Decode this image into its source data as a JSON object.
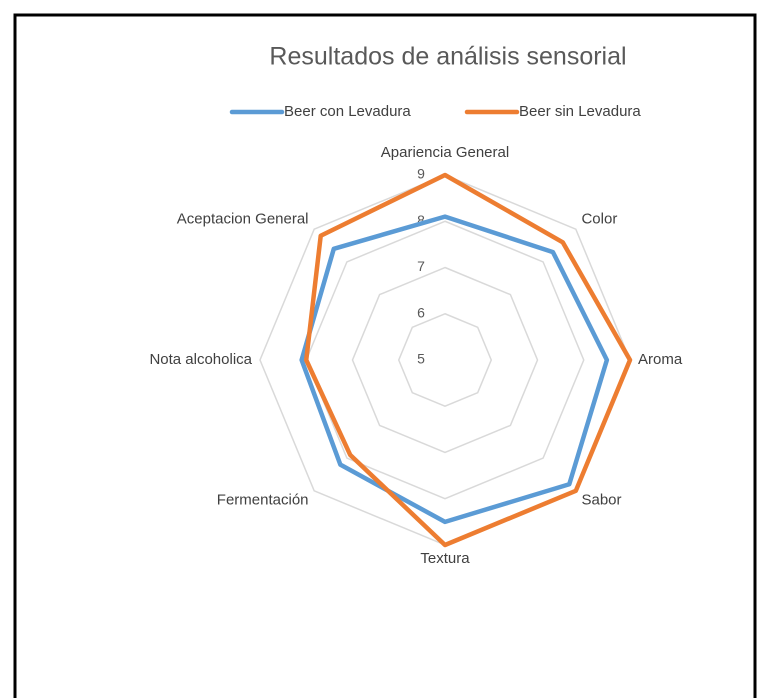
{
  "chart_data": {
    "type": "radar",
    "title": "Resultados de análisis sensorial",
    "categories": [
      "Apariencia General",
      "Color",
      "Aroma",
      "Sabor",
      "Textura",
      "Fermentación",
      "Nota alcoholica",
      "Aceptacion General"
    ],
    "series": [
      {
        "name": "Beer con Levadura",
        "color": "#5b9bd5",
        "values": [
          8.1,
          8.3,
          8.5,
          8.8,
          8.5,
          8.2,
          8.1,
          8.4
        ]
      },
      {
        "name": "Beer sin Levadura",
        "color": "#ed7d31",
        "values": [
          9.0,
          8.6,
          9.0,
          9.0,
          9.0,
          7.9,
          8.0,
          8.8
        ]
      }
    ],
    "ylim": [
      5,
      9
    ],
    "yticks": [
      5,
      6,
      7,
      8,
      9
    ],
    "grid": true,
    "legend": "top"
  }
}
